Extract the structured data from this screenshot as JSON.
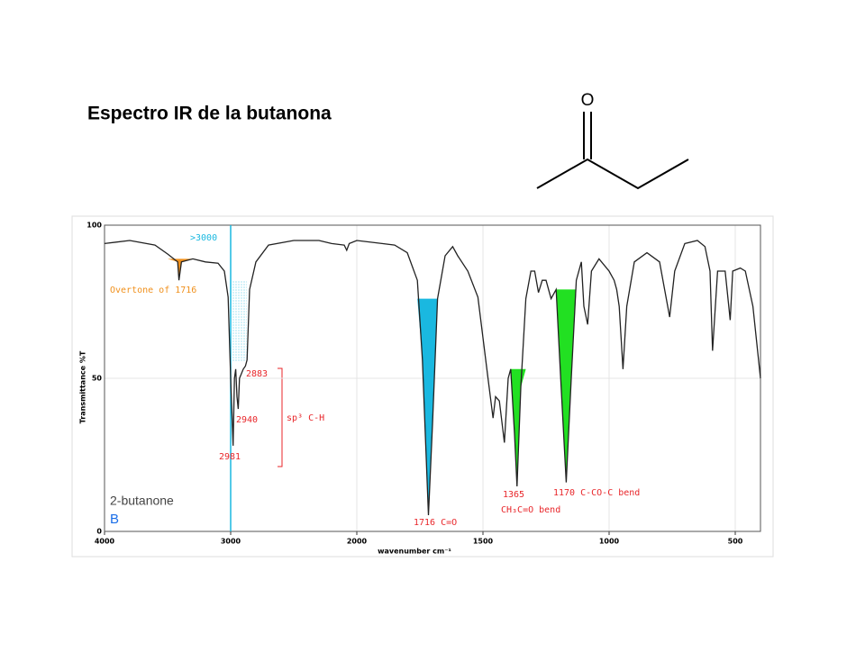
{
  "title": "Espectro IR de la butanona",
  "molecule": {
    "atom_label": "O"
  },
  "chart_data": {
    "type": "line",
    "x_label": "wavenumber cm⁻¹",
    "y_label": "Transmittance %T",
    "sample_label": "2-butanone",
    "panel_label": "B",
    "color": "#222222",
    "xlim": [
      4000,
      400
    ],
    "ylim": [
      0,
      100
    ],
    "xticks": [
      4000,
      3000,
      2000,
      1500,
      1000,
      500
    ],
    "yticks": [
      0,
      50,
      100
    ],
    "grid": true,
    "x": [
      4000,
      3800,
      3600,
      3500,
      3420,
      3410,
      3390,
      3300,
      3200,
      3100,
      3050,
      3020,
      3000,
      2981,
      2970,
      2960,
      2950,
      2940,
      2930,
      2900,
      2883,
      2870,
      2850,
      2800,
      2700,
      2500,
      2300,
      2200,
      2100,
      2080,
      2060,
      2000,
      1900,
      1850,
      1800,
      1760,
      1740,
      1716,
      1700,
      1680,
      1650,
      1620,
      1600,
      1560,
      1520,
      1480,
      1460,
      1450,
      1435,
      1415,
      1400,
      1390,
      1375,
      1365,
      1350,
      1330,
      1310,
      1295,
      1280,
      1265,
      1250,
      1230,
      1210,
      1190,
      1170,
      1150,
      1130,
      1110,
      1100,
      1085,
      1070,
      1040,
      1000,
      980,
      970,
      960,
      945,
      930,
      900,
      850,
      800,
      780,
      760,
      740,
      700,
      650,
      620,
      600,
      590,
      570,
      540,
      520,
      510,
      480,
      460,
      430,
      400
    ],
    "values": [
      94,
      95,
      93.5,
      90.6,
      88,
      82,
      88,
      89,
      88,
      87.6,
      85,
      76.5,
      50,
      28,
      50,
      53,
      44,
      40,
      50,
      53,
      54,
      56,
      79,
      88,
      93.5,
      95,
      95,
      94,
      93.5,
      91.8,
      94,
      95,
      94,
      93.5,
      91,
      82,
      56,
      5.3,
      35,
      76,
      90,
      93,
      90,
      85,
      76.5,
      50,
      37,
      44,
      42.6,
      29,
      50,
      53,
      32,
      14.7,
      47,
      76,
      85,
      85,
      78,
      82,
      82,
      76,
      79,
      47,
      16,
      50,
      82,
      88,
      73.5,
      67.6,
      85,
      89,
      85,
      82,
      79,
      73.5,
      53,
      73.5,
      88,
      91,
      88,
      79,
      70,
      85,
      94,
      95,
      93,
      85,
      59,
      85,
      85,
      69,
      85,
      86,
      85,
      73.5,
      50
    ],
    "annotations": [
      {
        "text": ">3000",
        "x": 3000,
        "color": "#1ab8e0"
      },
      {
        "text": "Overtone of 1716",
        "x": 3410,
        "color": "#f0901c"
      },
      {
        "text": "2883",
        "color": "#e8262a"
      },
      {
        "text": "2940",
        "color": "#e8262a"
      },
      {
        "text": "2981",
        "color": "#e8262a"
      },
      {
        "text": "sp³ C-H",
        "color": "#e8262a"
      },
      {
        "text": "1716  C=O",
        "x": 1716,
        "color": "#1ab8e0"
      },
      {
        "text": "1365",
        "x": 1365,
        "color": "#22e022"
      },
      {
        "text": "CH₃C=O bend",
        "color": "#e8262a"
      },
      {
        "text": "1170 C-CO-C bend",
        "x": 1170,
        "color": "#22e022"
      }
    ]
  }
}
